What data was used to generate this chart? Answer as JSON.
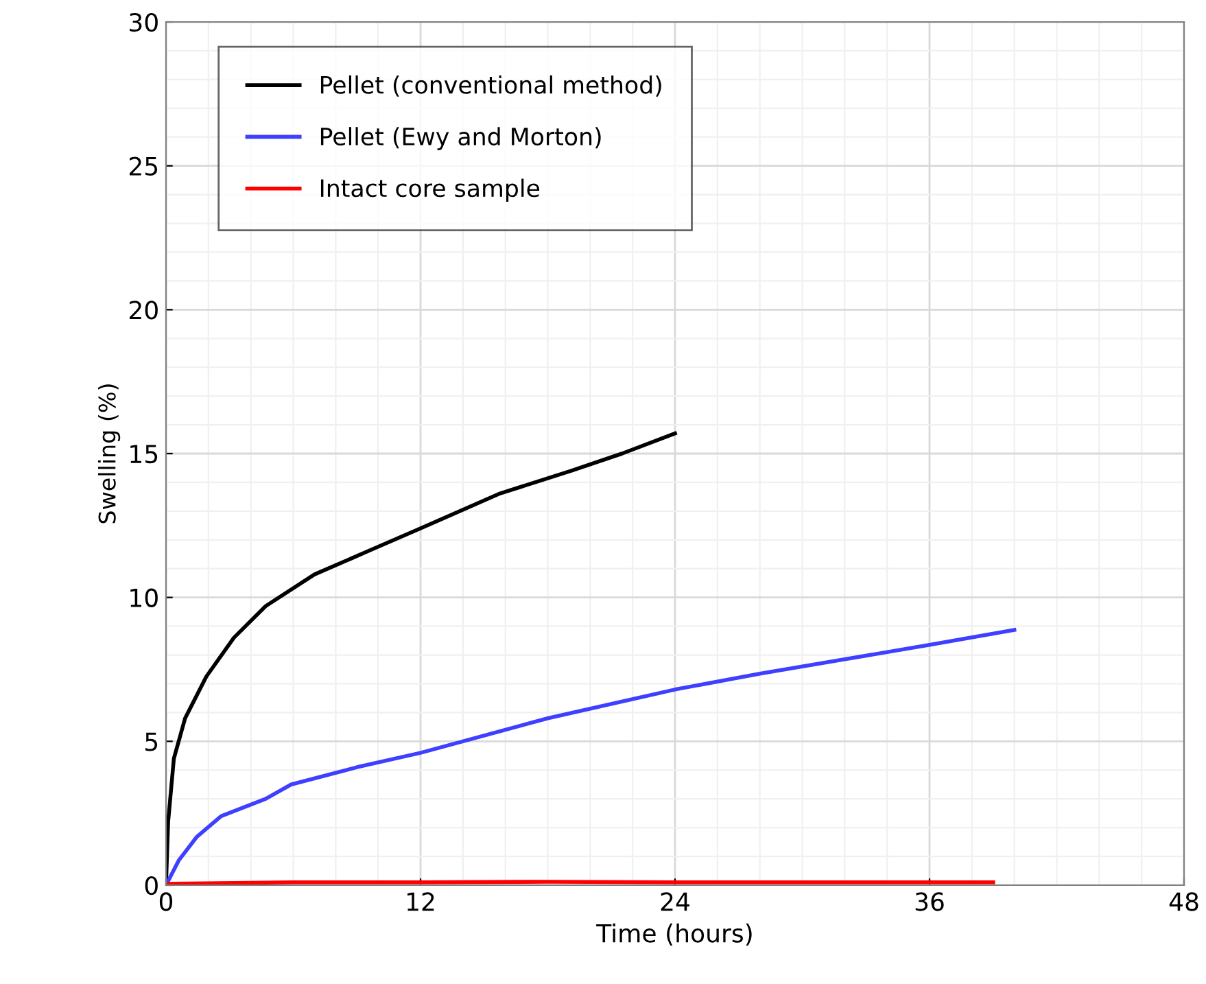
{
  "chart_data": {
    "type": "line",
    "xlabel": "Time (hours)",
    "ylabel": "Swelling (%)",
    "xlim": [
      0,
      48
    ],
    "ylim": [
      0,
      30
    ],
    "xticks": [
      0,
      12,
      24,
      36,
      48
    ],
    "yticks": [
      0,
      5,
      10,
      15,
      20,
      25,
      30
    ],
    "grid": true,
    "legend": "top left",
    "marker": "none",
    "line_style": "solid",
    "series": [
      {
        "name": "Pellet (conventional method)",
        "color": "#000000",
        "x": [
          0,
          0.1,
          0.37,
          0.9,
          1.9,
          3.2,
          4.7,
          7,
          9.5,
          12,
          15.7,
          19.1,
          21.5,
          24
        ],
        "values": [
          0,
          2.2,
          4.4,
          5.8,
          7.25,
          8.6,
          9.7,
          10.8,
          11.6,
          12.4,
          13.6,
          14.4,
          15.0,
          15.7
        ]
      },
      {
        "name": "Pellet (Ewy and Morton)",
        "color": "#3f3fff",
        "x": [
          0,
          0.6,
          1.44,
          2.6,
          4.7,
          5.9,
          9,
          12,
          18,
          24,
          28,
          32,
          36,
          40
        ],
        "values": [
          0,
          0.86,
          1.67,
          2.4,
          3.0,
          3.5,
          4.1,
          4.6,
          5.8,
          6.8,
          7.35,
          7.85,
          8.35,
          8.87
        ]
      },
      {
        "name": "Intact core sample",
        "color": "#ff0000",
        "x": [
          0,
          6,
          12,
          18,
          24,
          30,
          36,
          39
        ],
        "values": [
          0.05,
          0.1,
          0.1,
          0.12,
          0.1,
          0.1,
          0.1,
          0.1
        ]
      }
    ]
  }
}
